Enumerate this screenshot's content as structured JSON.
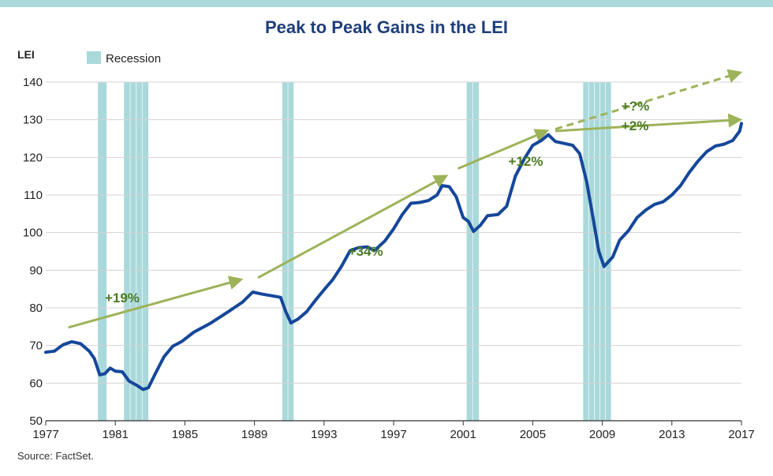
{
  "chart_data": {
    "type": "line",
    "title": "Peak to Peak Gains in the LEI",
    "ylabel": "LEI",
    "xlabel": "",
    "xlim": [
      1977,
      2017
    ],
    "ylim": [
      50,
      140
    ],
    "yticks": [
      50,
      60,
      70,
      80,
      90,
      100,
      110,
      120,
      130,
      140
    ],
    "xticks": [
      1977,
      1981,
      1985,
      1989,
      1993,
      1997,
      2001,
      2005,
      2009,
      2013,
      2017
    ],
    "grid": "horizontal",
    "legend": {
      "position": "top-left",
      "label": "Recession"
    },
    "colors": {
      "line": "#15479a",
      "recession": "#a9d9db",
      "arrow": "#9db35a",
      "annotation": "#4a7a22",
      "title": "#1f3f7a"
    },
    "recessions": [
      [
        1980.0,
        1980.5
      ],
      [
        1981.5,
        1982.9
      ],
      [
        1990.6,
        1991.25
      ],
      [
        2001.2,
        2001.9
      ],
      [
        2007.9,
        2009.5
      ]
    ],
    "series": [
      {
        "values": [
          [
            1977.0,
            68.2
          ],
          [
            1977.5,
            68.5
          ],
          [
            1978.0,
            70.2
          ],
          [
            1978.5,
            71.0
          ],
          [
            1979.0,
            70.5
          ],
          [
            1979.5,
            68.5
          ],
          [
            1979.8,
            66.5
          ],
          [
            1980.1,
            62.2
          ],
          [
            1980.4,
            62.5
          ],
          [
            1980.7,
            64.0
          ],
          [
            1981.0,
            63.2
          ],
          [
            1981.4,
            63.0
          ],
          [
            1981.8,
            60.5
          ],
          [
            1982.2,
            59.5
          ],
          [
            1982.6,
            58.3
          ],
          [
            1982.9,
            58.8
          ],
          [
            1983.3,
            62.5
          ],
          [
            1983.8,
            67.0
          ],
          [
            1984.3,
            69.8
          ],
          [
            1984.8,
            71.0
          ],
          [
            1985.5,
            73.5
          ],
          [
            1986.5,
            76.0
          ],
          [
            1987.5,
            79.0
          ],
          [
            1988.3,
            81.5
          ],
          [
            1988.9,
            84.2
          ],
          [
            1989.5,
            83.6
          ],
          [
            1990.0,
            83.2
          ],
          [
            1990.5,
            82.8
          ],
          [
            1990.8,
            79.0
          ],
          [
            1991.1,
            76.0
          ],
          [
            1991.5,
            77.0
          ],
          [
            1992.0,
            79.0
          ],
          [
            1992.5,
            82.0
          ],
          [
            1993.0,
            84.8
          ],
          [
            1993.5,
            87.5
          ],
          [
            1994.0,
            91.0
          ],
          [
            1994.5,
            95.2
          ],
          [
            1995.0,
            96.0
          ],
          [
            1995.5,
            96.2
          ],
          [
            1995.9,
            95.2
          ],
          [
            1996.5,
            97.8
          ],
          [
            1997.0,
            101.0
          ],
          [
            1997.5,
            104.8
          ],
          [
            1998.0,
            107.8
          ],
          [
            1998.5,
            108.0
          ],
          [
            1999.0,
            108.5
          ],
          [
            1999.5,
            110.0
          ],
          [
            1999.8,
            112.5
          ],
          [
            2000.2,
            112.2
          ],
          [
            2000.6,
            109.5
          ],
          [
            2001.0,
            104.0
          ],
          [
            2001.3,
            103.0
          ],
          [
            2001.6,
            100.3
          ],
          [
            2002.0,
            102.0
          ],
          [
            2002.4,
            104.5
          ],
          [
            2003.0,
            104.8
          ],
          [
            2003.5,
            107.0
          ],
          [
            2004.0,
            115.0
          ],
          [
            2004.5,
            119.5
          ],
          [
            2005.0,
            123.2
          ],
          [
            2005.5,
            124.5
          ],
          [
            2005.9,
            126.0
          ],
          [
            2006.3,
            124.2
          ],
          [
            2006.8,
            123.7
          ],
          [
            2007.3,
            123.2
          ],
          [
            2007.7,
            121.0
          ],
          [
            2008.1,
            113.5
          ],
          [
            2008.5,
            103.0
          ],
          [
            2008.8,
            95.0
          ],
          [
            2009.1,
            91.0
          ],
          [
            2009.6,
            93.5
          ],
          [
            2010.0,
            98.0
          ],
          [
            2010.5,
            100.5
          ],
          [
            2011.0,
            104.0
          ],
          [
            2011.5,
            106.0
          ],
          [
            2012.0,
            107.5
          ],
          [
            2012.5,
            108.2
          ],
          [
            2013.0,
            110.0
          ],
          [
            2013.5,
            112.5
          ],
          [
            2014.0,
            116.0
          ],
          [
            2014.5,
            119.0
          ],
          [
            2015.0,
            121.5
          ],
          [
            2015.5,
            123.0
          ],
          [
            2016.0,
            123.5
          ],
          [
            2016.5,
            124.5
          ],
          [
            2016.9,
            127.0
          ],
          [
            2017.0,
            129.0
          ]
        ]
      }
    ],
    "annotations": [
      {
        "text": "+19%",
        "x": 1980.4,
        "y": 81.5
      },
      {
        "text": "+34%",
        "x": 1994.4,
        "y": 93.8
      },
      {
        "text": "+12%",
        "x": 2003.6,
        "y": 117.8
      },
      {
        "text": "+?%",
        "x": 2010.1,
        "y": 132.5
      },
      {
        "text": "+2%",
        "x": 2010.1,
        "y": 127.2
      }
    ],
    "arrows": [
      {
        "from": [
          1978.3,
          74.8
        ],
        "to": [
          1988.2,
          87.5
        ],
        "style": "solid"
      },
      {
        "from": [
          1989.2,
          88.0
        ],
        "to": [
          2000.0,
          115.0
        ],
        "style": "solid"
      },
      {
        "from": [
          2000.7,
          117.0
        ],
        "to": [
          2005.8,
          127.0
        ],
        "style": "solid"
      },
      {
        "from": [
          2006.3,
          127.0
        ],
        "to": [
          2016.9,
          130.0
        ],
        "style": "solid"
      },
      {
        "from": [
          2006.3,
          127.5
        ],
        "to": [
          2016.9,
          142.5
        ],
        "style": "dashed"
      }
    ],
    "source": "Source: FactSet."
  }
}
